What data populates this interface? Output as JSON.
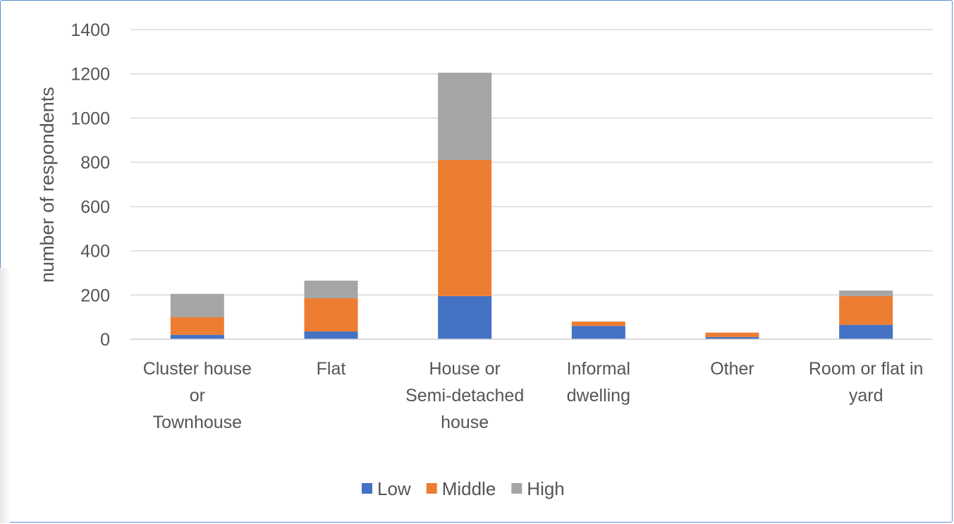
{
  "chart_data": {
    "type": "bar",
    "stacked": true,
    "title": "",
    "xlabel": "",
    "ylabel": "number of respondents",
    "ylim": [
      0,
      1400
    ],
    "yticks": [
      0,
      200,
      400,
      600,
      800,
      1000,
      1200,
      1400
    ],
    "grid": true,
    "legend_position": "bottom",
    "categories": [
      [
        "Cluster house",
        "or",
        "Townhouse"
      ],
      [
        "Flat"
      ],
      [
        "House or",
        "Semi-detached",
        "house"
      ],
      [
        "Informal",
        "dwelling"
      ],
      [
        "Other"
      ],
      [
        "Room or flat in",
        "yard"
      ]
    ],
    "series": [
      {
        "name": "Low",
        "color": "#4472c4",
        "values": [
          20,
          35,
          195,
          60,
          10,
          65
        ]
      },
      {
        "name": "Middle",
        "color": "#ed7d31",
        "values": [
          80,
          150,
          615,
          20,
          20,
          130
        ]
      },
      {
        "name": "High",
        "color": "#a5a5a5",
        "values": [
          105,
          80,
          395,
          0,
          0,
          25
        ]
      }
    ]
  }
}
